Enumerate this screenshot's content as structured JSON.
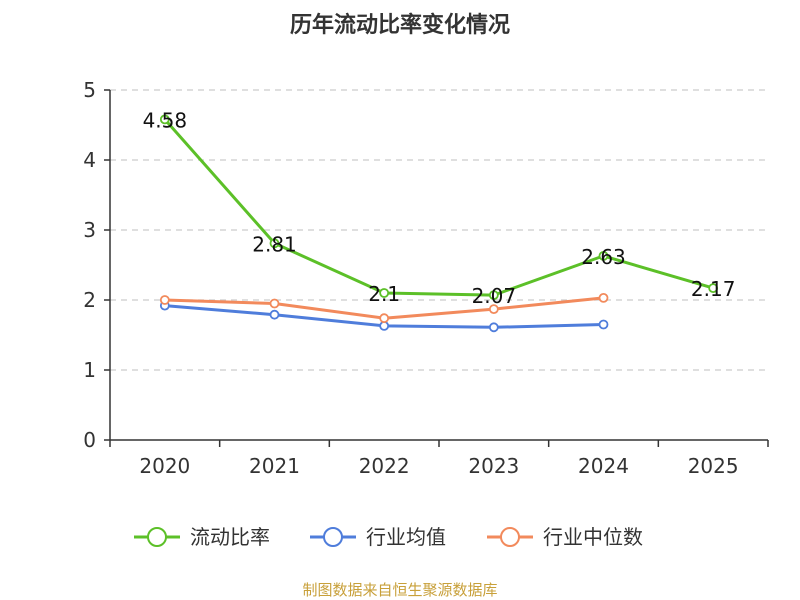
{
  "chart_data": {
    "type": "line",
    "title": "历年流动比率变化情况",
    "xlabel": "",
    "ylabel": "",
    "categories": [
      "2020",
      "2021",
      "2022",
      "2023",
      "2024",
      "2025"
    ],
    "ylim": [
      0,
      5
    ],
    "yticks": [
      0,
      1,
      2,
      3,
      4,
      5
    ],
    "grid": true,
    "legend_position": "bottom",
    "series": [
      {
        "name": "流动比率",
        "color": "#5cc028",
        "values": [
          4.58,
          2.81,
          2.1,
          2.07,
          2.63,
          2.17
        ],
        "labels": [
          "4.58",
          "2.81",
          "2.1",
          "2.07",
          "2.63",
          "2.17"
        ]
      },
      {
        "name": "行业均值",
        "color": "#4f7ddb",
        "values": [
          1.92,
          1.79,
          1.63,
          1.61,
          1.65,
          null
        ]
      },
      {
        "name": "行业中位数",
        "color": "#f28a5c",
        "values": [
          2.0,
          1.95,
          1.74,
          1.87,
          2.03,
          null
        ]
      }
    ],
    "source": "制图数据来自恒生聚源数据库"
  }
}
